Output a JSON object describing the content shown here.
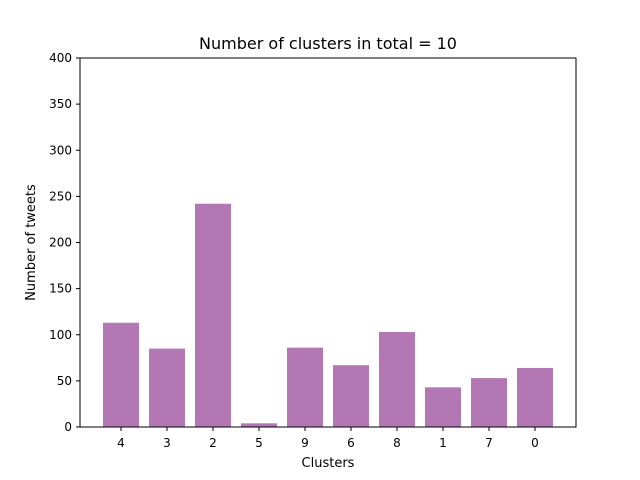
{
  "chart_data": {
    "type": "bar",
    "title": "Number of clusters in total = 10",
    "xlabel": "Clusters",
    "ylabel": "Number of tweets",
    "categories": [
      "4",
      "3",
      "2",
      "5",
      "9",
      "6",
      "8",
      "1",
      "7",
      "0"
    ],
    "values": [
      113,
      85,
      242,
      4,
      86,
      67,
      103,
      43,
      53,
      64
    ],
    "ylim": [
      0,
      400
    ],
    "yticks": [
      "0",
      "50",
      "100",
      "150",
      "200",
      "250",
      "300",
      "350",
      "400"
    ],
    "grid": false,
    "bar_color": "#b377b3"
  }
}
